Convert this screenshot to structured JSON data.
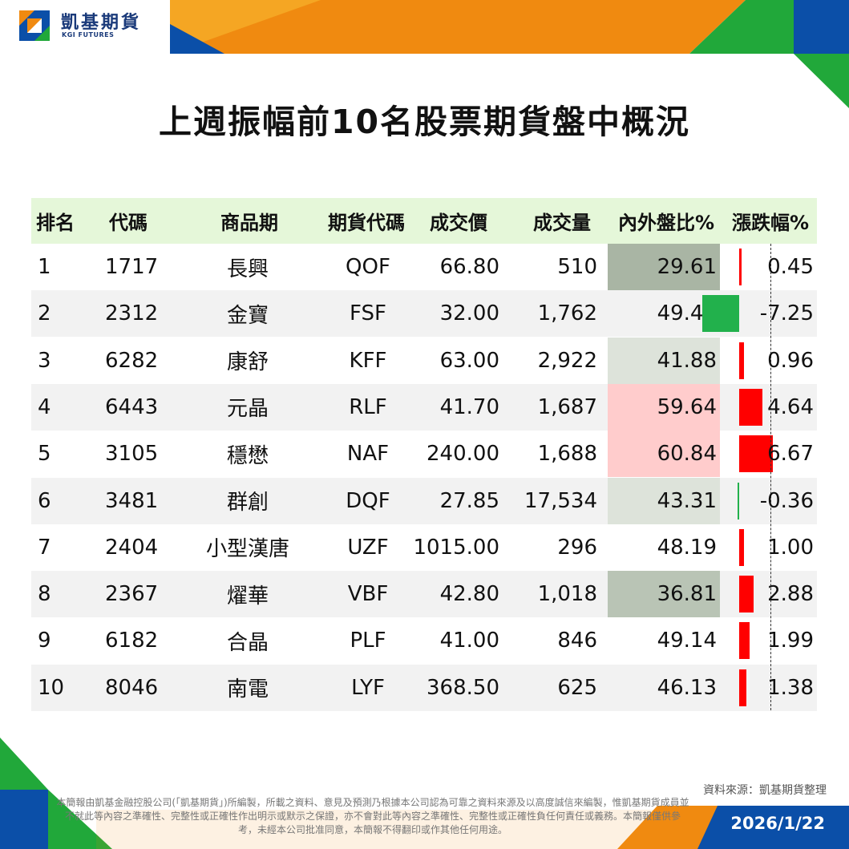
{
  "brand": {
    "name": "凱基期貨",
    "sub": "KGI FUTURES"
  },
  "title": "上週振幅前10名股票期貨盤中概況",
  "columns": [
    "排名",
    "代碼",
    "商品期",
    "期貨代碼",
    "成交價",
    "成交量",
    "內外盤比%",
    "漲跌幅%"
  ],
  "colors": {
    "header_bg": "#e5f7d9",
    "up": "#ff0000",
    "down": "#22b14c",
    "ratio_high": "#ffcccc",
    "ratio_low": "#a9b5a4",
    "brand_blue": "#0b4fa8",
    "brand_orange": "#f08a10",
    "brand_green": "#21a83a"
  },
  "rows": [
    {
      "rank": "1",
      "code": "1717",
      "name": "長興",
      "fut": "QOF",
      "price": "66.80",
      "vol": "510",
      "ratio": "29.61",
      "chg": "0.45"
    },
    {
      "rank": "2",
      "code": "2312",
      "name": "金寶",
      "fut": "FSF",
      "price": "32.00",
      "vol": "1,762",
      "ratio": "49.44",
      "chg": "-7.25"
    },
    {
      "rank": "3",
      "code": "6282",
      "name": "康舒",
      "fut": "KFF",
      "price": "63.00",
      "vol": "2,922",
      "ratio": "41.88",
      "chg": "0.96"
    },
    {
      "rank": "4",
      "code": "6443",
      "name": "元晶",
      "fut": "RLF",
      "price": "41.70",
      "vol": "1,687",
      "ratio": "59.64",
      "chg": "4.64"
    },
    {
      "rank": "5",
      "code": "3105",
      "name": "穩懋",
      "fut": "NAF",
      "price": "240.00",
      "vol": "1,688",
      "ratio": "60.84",
      "chg": "6.67"
    },
    {
      "rank": "6",
      "code": "3481",
      "name": "群創",
      "fut": "DQF",
      "price": "27.85",
      "vol": "17,534",
      "ratio": "43.31",
      "chg": "-0.36"
    },
    {
      "rank": "7",
      "code": "2404",
      "name": "小型漢唐",
      "fut": "UZF",
      "price": "1015.00",
      "vol": "296",
      "ratio": "48.19",
      "chg": "1.00"
    },
    {
      "rank": "8",
      "code": "2367",
      "name": "燿華",
      "fut": "VBF",
      "price": "42.80",
      "vol": "1,018",
      "ratio": "36.81",
      "chg": "2.88"
    },
    {
      "rank": "9",
      "code": "6182",
      "name": "合晶",
      "fut": "PLF",
      "price": "41.00",
      "vol": "846",
      "ratio": "49.14",
      "chg": "1.99"
    },
    {
      "rank": "10",
      "code": "8046",
      "name": "南電",
      "fut": "LYF",
      "price": "368.50",
      "vol": "625",
      "ratio": "46.13",
      "chg": "1.38"
    }
  ],
  "source": "資料來源：凱基期貨整理",
  "disclaimer": "本簡報由凱基金融控股公司(「凱基期貨」)所編製，所載之資料、意見及預測乃根據本公司認為可靠之資料來源及以高度誠信來編製，惟凱基期貨成員並不就此等內容之準確性、完整性或正確性作出明示或默示之保證，亦不會對此等內容之準確性、完整性或正確性負任何責任或義務。本簡報僅供參考，未經本公司批准同意，本簡報不得翻印或作其他任何用途。",
  "date": "2026/1/22"
}
